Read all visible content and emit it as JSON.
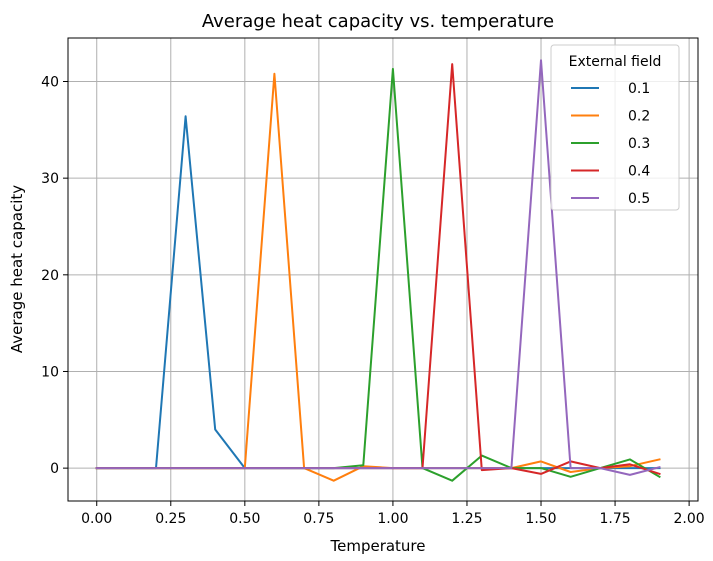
{
  "chart_data": {
    "type": "line",
    "title": "Average heat capacity vs. temperature",
    "xlabel": "Temperature",
    "ylabel": "Average heat capacity",
    "xlim": [
      -0.097,
      2.03
    ],
    "ylim": [
      -3.4,
      44.5
    ],
    "xticks": [
      0.0,
      0.25,
      0.5,
      0.75,
      1.0,
      1.25,
      1.5,
      1.75,
      2.0
    ],
    "xtick_labels": [
      "0.00",
      "0.25",
      "0.50",
      "0.75",
      "1.00",
      "1.25",
      "1.50",
      "1.75",
      "2.00"
    ],
    "yticks": [
      0,
      10,
      20,
      30,
      40
    ],
    "ytick_labels": [
      "0",
      "10",
      "20",
      "30",
      "40"
    ],
    "grid": true,
    "legend": {
      "title": "External field",
      "placement": "upper right"
    },
    "x": [
      0.0,
      0.1,
      0.2,
      0.3,
      0.4,
      0.5,
      0.6,
      0.7,
      0.8,
      0.9,
      1.0,
      1.1,
      1.2,
      1.3,
      1.4,
      1.5,
      1.6,
      1.7,
      1.8,
      1.9
    ],
    "series": [
      {
        "name": "0.1",
        "color": "#1f77b4",
        "values": [
          0,
          0,
          0,
          36.4,
          4.0,
          0,
          0,
          0,
          0,
          0,
          0,
          0,
          0,
          0,
          0,
          0,
          0,
          0,
          0,
          0
        ]
      },
      {
        "name": "0.2",
        "color": "#ff7f0e",
        "values": [
          0,
          0,
          0,
          0,
          0,
          0,
          40.8,
          0,
          -1.3,
          0.2,
          0,
          0,
          0,
          0,
          0,
          0.7,
          -0.4,
          0,
          0.2,
          0.9
        ]
      },
      {
        "name": "0.3",
        "color": "#2ca02c",
        "values": [
          0,
          0,
          0,
          0,
          0,
          0,
          0,
          0,
          0,
          0.3,
          41.3,
          0,
          -1.3,
          1.3,
          0,
          0,
          -0.9,
          0,
          0.9,
          -0.9
        ]
      },
      {
        "name": "0.4",
        "color": "#d62728",
        "values": [
          0,
          0,
          0,
          0,
          0,
          0,
          0,
          0,
          0,
          0,
          0,
          0,
          41.8,
          -0.2,
          0,
          -0.6,
          0.7,
          0,
          0.4,
          -0.6
        ]
      },
      {
        "name": "0.5",
        "color": "#9467bd",
        "values": [
          0,
          0,
          0,
          0,
          0,
          0,
          0,
          0,
          0,
          0,
          0,
          0,
          0,
          0,
          0,
          42.2,
          0,
          0,
          -0.7,
          0.1
        ]
      }
    ]
  }
}
